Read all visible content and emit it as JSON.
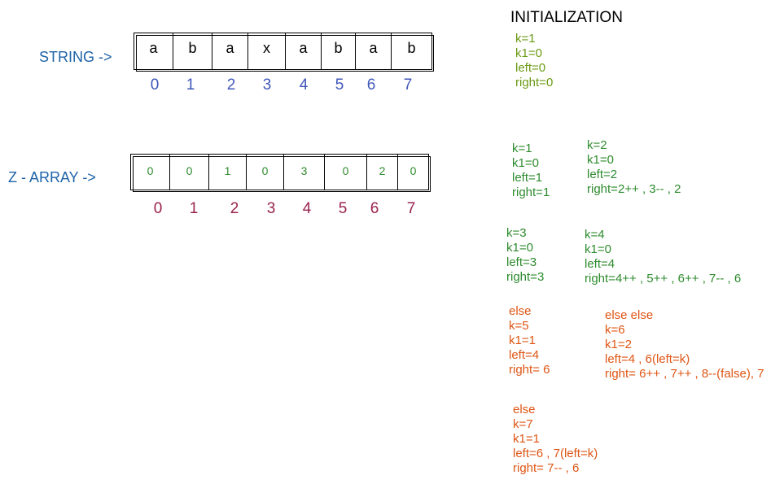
{
  "string_row": {
    "label": "STRING ->",
    "cells": [
      "a",
      "b",
      "a",
      "x",
      "a",
      "b",
      "a",
      "b"
    ],
    "indices": [
      "0",
      "1",
      "2",
      "3",
      "4",
      "5",
      "6",
      "7"
    ]
  },
  "zarray_row": {
    "label": "Z - ARRAY ->",
    "cells": [
      "0",
      "0",
      "1",
      "0",
      "3",
      "0",
      "2",
      "0"
    ],
    "indices": [
      "0",
      "1",
      "2",
      "3",
      "4",
      "5",
      "6",
      "7"
    ]
  },
  "initialization": {
    "title": "INITIALIZATION",
    "lines": [
      "k=1",
      "k1=0",
      "left=0",
      "right=0"
    ]
  },
  "steps": [
    {
      "lines": [
        "k=1",
        "k1=0",
        "left=1",
        "right=1"
      ]
    },
    {
      "lines": [
        "k=2",
        "k1=0",
        "left=2",
        "right=2++ , 3-- , 2"
      ]
    },
    {
      "lines": [
        "k=3",
        "k1=0",
        "left=3",
        "right=3"
      ]
    },
    {
      "lines": [
        "k=4",
        "k1=0",
        "left=4",
        "right=4++ , 5++ , 6++ , 7-- , 6"
      ]
    },
    {
      "lines": [
        "else",
        "k=5",
        "k1=1",
        "left=4",
        "right= 6"
      ]
    },
    {
      "lines": [
        "else else",
        "k=6",
        "k1=2",
        "left=4 , 6(left=k)",
        "right= 6++ , 7++ , 8--(false), 7"
      ]
    },
    {
      "lines": [
        "else",
        "k=7",
        "k1=1",
        "left=6 , 7(left=k)",
        "right= 7-- , 6"
      ]
    }
  ],
  "colors": {
    "label_blue": "#1f63a8",
    "index_blue": "#3f57b8",
    "index_maroon": "#99224e",
    "olive": "#6a9a13",
    "green": "#2e8b2e",
    "orange": "#de5514"
  }
}
